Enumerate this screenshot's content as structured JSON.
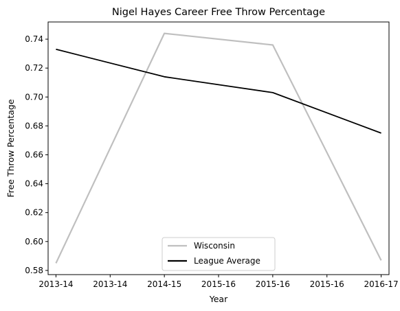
{
  "chart_data": {
    "type": "line",
    "title": "Nigel Hayes Career Free Throw Percentage",
    "xlabel": "Year",
    "ylabel": "Free Throw Percentage",
    "x_tick_labels": [
      "2013-14",
      "2013-14",
      "2014-15",
      "2015-16",
      "2015-16",
      "2015-16",
      "2016-17"
    ],
    "x": [
      0,
      1,
      2,
      3
    ],
    "xlim": [
      -0.0725,
      3.0725
    ],
    "ylim": [
      0.5771,
      0.7519
    ],
    "y_ticks": [
      0.58,
      0.6,
      0.62,
      0.64,
      0.66,
      0.68,
      0.7,
      0.72,
      0.74
    ],
    "grid": false,
    "legend_position": "lower-center",
    "series": [
      {
        "name": "Wisconsin",
        "values": [
          0.585,
          0.744,
          0.736,
          0.587
        ],
        "color": "#bfbfbf"
      },
      {
        "name": "League Average",
        "values": [
          0.733,
          0.714,
          0.703,
          0.675
        ],
        "color": "#000000"
      }
    ]
  }
}
